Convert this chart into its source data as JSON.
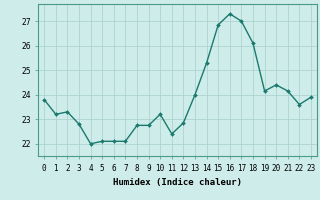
{
  "x": [
    0,
    1,
    2,
    3,
    4,
    5,
    6,
    7,
    8,
    9,
    10,
    11,
    12,
    13,
    14,
    15,
    16,
    17,
    18,
    19,
    20,
    21,
    22,
    23
  ],
  "y": [
    23.8,
    23.2,
    23.3,
    22.8,
    22.0,
    22.1,
    22.1,
    22.1,
    22.75,
    22.75,
    23.2,
    22.4,
    22.85,
    24.0,
    25.3,
    26.85,
    27.3,
    27.0,
    26.1,
    24.15,
    24.4,
    24.15,
    23.6,
    23.9
  ],
  "line_color": "#1a7a6e",
  "marker": "D",
  "marker_size": 2.0,
  "bg_color": "#ceecea",
  "grid_color": "#aed4d1",
  "xlabel": "Humidex (Indice chaleur)",
  "ylim": [
    21.5,
    27.7
  ],
  "xlim": [
    -0.5,
    23.5
  ],
  "yticks": [
    22,
    23,
    24,
    25,
    26,
    27
  ],
  "xtick_labels": [
    "0",
    "1",
    "2",
    "3",
    "4",
    "5",
    "6",
    "7",
    "8",
    "9",
    "10",
    "11",
    "12",
    "13",
    "14",
    "15",
    "16",
    "17",
    "18",
    "19",
    "20",
    "21",
    "22",
    "23"
  ],
  "label_fontsize": 6.5,
  "tick_fontsize": 5.5,
  "linewidth": 1.0,
  "spine_color": "#4a9a8a"
}
